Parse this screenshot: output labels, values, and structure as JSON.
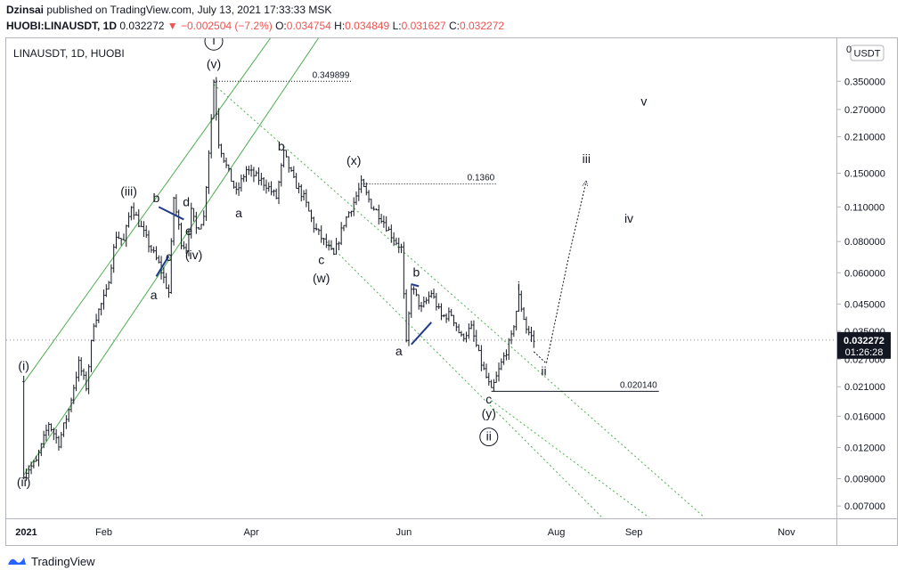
{
  "header": {
    "author": "Dzinsai",
    "published": " published on TradingView.com, July 13, 2021 17:33:33 MSK",
    "symbol": "HUOBI:LINAUSDT, 1D",
    "last": "0.032272",
    "change": "−0.002504 (−7.2%)",
    "o_label": "O:",
    "o": "0.034754",
    "h_label": "H:",
    "h": "0.034849",
    "l_label": "L:",
    "l": "0.031627",
    "c_label": "C:",
    "c": "0.032272"
  },
  "footer": {
    "brand": "TradingView"
  },
  "colors": {
    "up": "#131722",
    "channel": "#4caf50",
    "accent_blue": "#1e3a8a",
    "price_tag": "#131722",
    "down": "#ef5350"
  },
  "chart_data": {
    "type": "candlestick",
    "title": "LINAUSDT, 1D, HUOBI",
    "currency_label": "USDT",
    "scale": "log",
    "ylim": [
      0.0063,
      0.52
    ],
    "y_ticks": [
      0.35,
      0.27,
      0.21,
      0.15,
      0.11,
      0.08,
      0.06,
      0.045,
      0.035,
      0.027,
      0.021,
      0.016,
      0.012,
      0.009,
      0.007
    ],
    "y_tick_labels": [
      "0.350000",
      "0.270000",
      "0.210000",
      "0.150000",
      "0.110000",
      "0.080000",
      "0.060000",
      "0.045000",
      "0.035000",
      "0.027000",
      "0.021000",
      "0.016000",
      "0.012000",
      "0.009000",
      "0.007000"
    ],
    "y_top_label": "0",
    "x_range": [
      "2020-12-24",
      "2021-11-21"
    ],
    "x_ticks": [
      {
        "date": "2021-01-01",
        "label": "2021"
      },
      {
        "date": "2021-02-01",
        "label": "Feb"
      },
      {
        "date": "2021-04-01",
        "label": "Apr"
      },
      {
        "date": "2021-06-01",
        "label": "Jun"
      },
      {
        "date": "2021-08-01",
        "label": "Aug"
      },
      {
        "date": "2021-09-01",
        "label": "Sep"
      },
      {
        "date": "2021-11-01",
        "label": "Nov"
      }
    ],
    "price_path": [
      [
        "2020-12-31",
        0.022
      ],
      [
        "2020-12-31",
        0.0095
      ],
      [
        "2021-01-05",
        0.0105
      ],
      [
        "2021-01-10",
        0.015
      ],
      [
        "2021-01-14",
        0.0125
      ],
      [
        "2021-01-18",
        0.017
      ],
      [
        "2021-01-22",
        0.026
      ],
      [
        "2021-01-25",
        0.021
      ],
      [
        "2021-01-28",
        0.038
      ],
      [
        "2021-02-02",
        0.05
      ],
      [
        "2021-02-06",
        0.085
      ],
      [
        "2021-02-09",
        0.08
      ],
      [
        "2021-02-12",
        0.112
      ],
      [
        "2021-02-15",
        0.095
      ],
      [
        "2021-02-19",
        0.078
      ],
      [
        "2021-02-23",
        0.065
      ],
      [
        "2021-02-27",
        0.05
      ],
      [
        "2021-03-01",
        0.12
      ],
      [
        "2021-03-04",
        0.08
      ],
      [
        "2021-03-06",
        0.075
      ],
      [
        "2021-03-08",
        0.105
      ],
      [
        "2021-03-10",
        0.09
      ],
      [
        "2021-03-13",
        0.1
      ],
      [
        "2021-03-16",
        0.25
      ],
      [
        "2021-03-17",
        0.3499
      ],
      [
        "2021-03-19",
        0.2
      ],
      [
        "2021-03-22",
        0.16
      ],
      [
        "2021-03-26",
        0.125
      ],
      [
        "2021-03-30",
        0.155
      ],
      [
        "2021-04-03",
        0.145
      ],
      [
        "2021-04-07",
        0.135
      ],
      [
        "2021-04-11",
        0.12
      ],
      [
        "2021-04-14",
        0.18
      ],
      [
        "2021-04-18",
        0.14
      ],
      [
        "2021-04-22",
        0.12
      ],
      [
        "2021-04-26",
        0.092
      ],
      [
        "2021-04-30",
        0.08
      ],
      [
        "2021-05-04",
        0.07
      ],
      [
        "2021-05-08",
        0.095
      ],
      [
        "2021-05-12",
        0.115
      ],
      [
        "2021-05-15",
        0.136
      ],
      [
        "2021-05-19",
        0.112
      ],
      [
        "2021-05-23",
        0.1
      ],
      [
        "2021-05-27",
        0.085
      ],
      [
        "2021-05-31",
        0.075
      ],
      [
        "2021-06-02",
        0.031
      ],
      [
        "2021-06-04",
        0.053
      ],
      [
        "2021-06-08",
        0.043
      ],
      [
        "2021-06-12",
        0.05
      ],
      [
        "2021-06-16",
        0.04
      ],
      [
        "2021-06-20",
        0.041
      ],
      [
        "2021-06-24",
        0.033
      ],
      [
        "2021-06-28",
        0.036
      ],
      [
        "2021-07-02",
        0.026
      ],
      [
        "2021-07-06",
        0.0201
      ],
      [
        "2021-07-10",
        0.026
      ],
      [
        "2021-07-14",
        0.033
      ],
      [
        "2021-07-17",
        0.048
      ],
      [
        "2021-07-20",
        0.036
      ],
      [
        "2021-07-23",
        0.032
      ]
    ],
    "last_price": {
      "value": 0.032272,
      "label": "0.032272",
      "countdown": "01:26:28"
    },
    "levels": [
      {
        "value": 0.349899,
        "label": "0.349899",
        "from": "2021-03-17",
        "to": "2021-05-11",
        "style": "dotted"
      },
      {
        "value": 0.136,
        "label": "0.1360",
        "from": "2021-05-15",
        "to": "2021-07-08",
        "style": "dotted"
      },
      {
        "value": 0.02014,
        "label": "0.020140",
        "from": "2021-07-06",
        "to": "2021-09-11",
        "style": "solid"
      }
    ],
    "channels": [
      {
        "style": "solid",
        "from": [
          "2020-12-31",
          0.0218
        ],
        "to": [
          "2021-04-16",
          0.66
        ]
      },
      {
        "style": "solid",
        "from": [
          "2020-12-31",
          0.0093
        ],
        "to": [
          "2021-05-01",
          0.58
        ]
      },
      {
        "style": "dotted",
        "from": [
          "2021-03-17",
          0.34
        ],
        "to": [
          "2021-09-30",
          0.0062
        ]
      },
      {
        "style": "dotted",
        "from": [
          "2021-05-01",
          0.08
        ],
        "to": [
          "2021-08-20",
          0.0062
        ]
      },
      {
        "style": "dotted",
        "from": [
          "2021-07-06",
          0.0185
        ],
        "to": [
          "2021-09-08",
          0.0062
        ]
      }
    ],
    "wave_lines": [
      {
        "from": [
          "2021-02-22",
          0.058
        ],
        "to": [
          "2021-02-27",
          0.07
        ]
      },
      {
        "from": [
          "2021-02-23",
          0.11
        ],
        "to": [
          "2021-03-05",
          0.098
        ]
      },
      {
        "from": [
          "2021-06-04",
          0.054
        ],
        "to": [
          "2021-06-07",
          0.053
        ]
      },
      {
        "from": [
          "2021-06-04",
          0.031
        ],
        "to": [
          "2021-06-12",
          0.038
        ]
      }
    ],
    "projection": [
      [
        "2021-07-23",
        0.029
      ],
      [
        "2021-07-28",
        0.026
      ],
      [
        "2021-08-06",
        0.07
      ],
      [
        "2021-08-13",
        0.14
      ]
    ],
    "annotations": [
      {
        "text": "i",
        "date": "2021-03-17",
        "value": 0.49,
        "circled": true
      },
      {
        "text": "(v)",
        "date": "2021-03-17",
        "value": 0.395
      },
      {
        "text": "(iii)",
        "date": "2021-02-11",
        "value": 0.122
      },
      {
        "text": "(i)",
        "date": "2020-12-31",
        "value": 0.0245
      },
      {
        "text": "(ii)",
        "date": "2020-12-31",
        "value": 0.0084
      },
      {
        "text": "b",
        "date": "2021-02-22",
        "value": 0.115
      },
      {
        "text": "d",
        "date": "2021-03-06",
        "value": 0.111
      },
      {
        "text": "c",
        "date": "2021-02-27",
        "value": 0.067
      },
      {
        "text": "e",
        "date": "2021-03-07",
        "value": 0.085
      },
      {
        "text": "(iv)",
        "date": "2021-03-09",
        "value": 0.068
      },
      {
        "text": "a",
        "date": "2021-02-21",
        "value": 0.047
      },
      {
        "text": "a",
        "date": "2021-03-27",
        "value": 0.1
      },
      {
        "text": "b",
        "date": "2021-04-13",
        "value": 0.185
      },
      {
        "text": "(x)",
        "date": "2021-05-12",
        "value": 0.162
      },
      {
        "text": "c",
        "date": "2021-04-29",
        "value": 0.065
      },
      {
        "text": "(w)",
        "date": "2021-04-29",
        "value": 0.055
      },
      {
        "text": "a",
        "date": "2021-05-30",
        "value": 0.028
      },
      {
        "text": "b",
        "date": "2021-06-06",
        "value": 0.058
      },
      {
        "text": "c",
        "date": "2021-07-05",
        "value": 0.018
      },
      {
        "text": "(y)",
        "date": "2021-07-05",
        "value": 0.0158
      },
      {
        "text": "ii",
        "date": "2021-07-05",
        "value": 0.0128,
        "circled": true
      },
      {
        "text": "i",
        "date": "2021-07-17",
        "value": 0.051
      },
      {
        "text": "ii",
        "date": "2021-07-27",
        "value": 0.0233
      },
      {
        "text": "iii",
        "date": "2021-08-13",
        "value": 0.165
      },
      {
        "text": "iv",
        "date": "2021-08-30",
        "value": 0.095
      },
      {
        "text": "v",
        "date": "2021-09-05",
        "value": 0.28
      }
    ]
  }
}
